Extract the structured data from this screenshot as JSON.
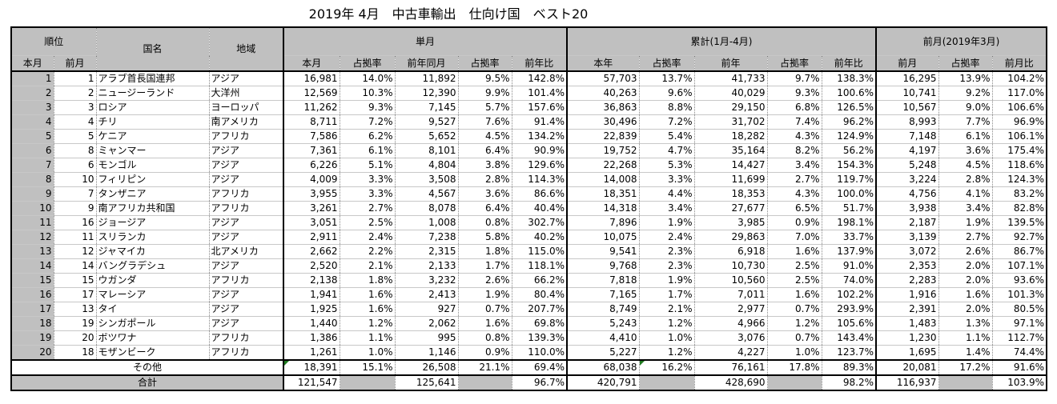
{
  "title": "2019年 4月　中古車輸出　仕向け国　ベスト20",
  "headers": {
    "rank": "順位",
    "rank_this": "本月",
    "rank_prev": "前月",
    "country": "国名",
    "region": "地域",
    "monthly": "単月",
    "cumulative": "累計(1月-4月)",
    "prevmonth": "前月(2019年3月)",
    "m_this": "本月",
    "m_share": "占拠率",
    "m_ly": "前年同月",
    "m_ly_share": "占拠率",
    "m_yoy": "前年比",
    "c_this": "本年",
    "c_share": "占拠率",
    "c_ly": "前年",
    "c_ly_share": "占拠率",
    "c_yoy": "前年比",
    "p_prev": "前月",
    "p_share": "占拠率",
    "p_mom": "前月比"
  },
  "rows": [
    {
      "rank": "1",
      "prev": "1",
      "country": "アラブ首長国連邦",
      "region": "アジア",
      "m": "16,981",
      "ms": "14.0%",
      "ly": "11,892",
      "lys": "9.5%",
      "yoy": "142.8%",
      "c": "57,703",
      "cs": "13.7%",
      "cly": "41,733",
      "clys": "9.7%",
      "cyoy": "138.3%",
      "p": "16,295",
      "ps": "13.9%",
      "mom": "104.2%"
    },
    {
      "rank": "2",
      "prev": "2",
      "country": "ニュージーランド",
      "region": "大洋州",
      "m": "12,569",
      "ms": "10.3%",
      "ly": "12,390",
      "lys": "9.9%",
      "yoy": "101.4%",
      "c": "40,263",
      "cs": "9.6%",
      "cly": "40,029",
      "clys": "9.3%",
      "cyoy": "100.6%",
      "p": "10,741",
      "ps": "9.2%",
      "mom": "117.0%"
    },
    {
      "rank": "3",
      "prev": "3",
      "country": "ロシア",
      "region": "ヨーロッパ",
      "m": "11,262",
      "ms": "9.3%",
      "ly": "7,145",
      "lys": "5.7%",
      "yoy": "157.6%",
      "c": "36,863",
      "cs": "8.8%",
      "cly": "29,150",
      "clys": "6.8%",
      "cyoy": "126.5%",
      "p": "10,567",
      "ps": "9.0%",
      "mom": "106.6%"
    },
    {
      "rank": "4",
      "prev": "4",
      "country": "チリ",
      "region": "南アメリカ",
      "m": "8,711",
      "ms": "7.2%",
      "ly": "9,527",
      "lys": "7.6%",
      "yoy": "91.4%",
      "c": "30,496",
      "cs": "7.2%",
      "cly": "31,702",
      "clys": "7.4%",
      "cyoy": "96.2%",
      "p": "8,993",
      "ps": "7.7%",
      "mom": "96.9%"
    },
    {
      "rank": "5",
      "prev": "5",
      "country": "ケニア",
      "region": "アフリカ",
      "m": "7,586",
      "ms": "6.2%",
      "ly": "5,652",
      "lys": "4.5%",
      "yoy": "134.2%",
      "c": "22,839",
      "cs": "5.4%",
      "cly": "18,282",
      "clys": "4.3%",
      "cyoy": "124.9%",
      "p": "7,148",
      "ps": "6.1%",
      "mom": "106.1%"
    },
    {
      "rank": "6",
      "prev": "8",
      "country": "ミャンマー",
      "region": "アジア",
      "m": "7,361",
      "ms": "6.1%",
      "ly": "8,101",
      "lys": "6.4%",
      "yoy": "90.9%",
      "c": "19,752",
      "cs": "4.7%",
      "cly": "35,164",
      "clys": "8.2%",
      "cyoy": "56.2%",
      "p": "4,197",
      "ps": "3.6%",
      "mom": "175.4%"
    },
    {
      "rank": "7",
      "prev": "6",
      "country": "モンゴル",
      "region": "アジア",
      "m": "6,226",
      "ms": "5.1%",
      "ly": "4,804",
      "lys": "3.8%",
      "yoy": "129.6%",
      "c": "22,268",
      "cs": "5.3%",
      "cly": "14,427",
      "clys": "3.4%",
      "cyoy": "154.3%",
      "p": "5,248",
      "ps": "4.5%",
      "mom": "118.6%"
    },
    {
      "rank": "8",
      "prev": "10",
      "country": "フィリピン",
      "region": "アジア",
      "m": "4,009",
      "ms": "3.3%",
      "ly": "3,508",
      "lys": "2.8%",
      "yoy": "114.3%",
      "c": "14,008",
      "cs": "3.3%",
      "cly": "11,699",
      "clys": "2.7%",
      "cyoy": "119.7%",
      "p": "3,224",
      "ps": "2.8%",
      "mom": "124.3%"
    },
    {
      "rank": "9",
      "prev": "7",
      "country": "タンザニア",
      "region": "アフリカ",
      "m": "3,955",
      "ms": "3.3%",
      "ly": "4,567",
      "lys": "3.6%",
      "yoy": "86.6%",
      "c": "18,351",
      "cs": "4.4%",
      "cly": "18,353",
      "clys": "4.3%",
      "cyoy": "100.0%",
      "p": "4,756",
      "ps": "4.1%",
      "mom": "83.2%"
    },
    {
      "rank": "10",
      "prev": "9",
      "country": "南アフリカ共和国",
      "region": "アフリカ",
      "m": "3,261",
      "ms": "2.7%",
      "ly": "8,078",
      "lys": "6.4%",
      "yoy": "40.4%",
      "c": "14,318",
      "cs": "3.4%",
      "cly": "27,677",
      "clys": "6.5%",
      "cyoy": "51.7%",
      "p": "3,938",
      "ps": "3.4%",
      "mom": "82.8%"
    },
    {
      "rank": "11",
      "prev": "16",
      "country": "ジョージア",
      "region": "アジア",
      "m": "3,051",
      "ms": "2.5%",
      "ly": "1,008",
      "lys": "0.8%",
      "yoy": "302.7%",
      "c": "7,896",
      "cs": "1.9%",
      "cly": "3,985",
      "clys": "0.9%",
      "cyoy": "198.1%",
      "p": "2,187",
      "ps": "1.9%",
      "mom": "139.5%"
    },
    {
      "rank": "12",
      "prev": "11",
      "country": "スリランカ",
      "region": "アジア",
      "m": "2,911",
      "ms": "2.4%",
      "ly": "7,238",
      "lys": "5.8%",
      "yoy": "40.2%",
      "c": "10,075",
      "cs": "2.4%",
      "cly": "29,863",
      "clys": "7.0%",
      "cyoy": "33.7%",
      "p": "3,139",
      "ps": "2.7%",
      "mom": "92.7%"
    },
    {
      "rank": "13",
      "prev": "12",
      "country": "ジャマイカ",
      "region": "北アメリカ",
      "m": "2,662",
      "ms": "2.2%",
      "ly": "2,315",
      "lys": "1.8%",
      "yoy": "115.0%",
      "c": "9,541",
      "cs": "2.3%",
      "cly": "6,918",
      "clys": "1.6%",
      "cyoy": "137.9%",
      "p": "3,072",
      "ps": "2.6%",
      "mom": "86.7%"
    },
    {
      "rank": "14",
      "prev": "14",
      "country": "バングラデシュ",
      "region": "アジア",
      "m": "2,520",
      "ms": "2.1%",
      "ly": "2,133",
      "lys": "1.7%",
      "yoy": "118.1%",
      "c": "9,768",
      "cs": "2.3%",
      "cly": "10,730",
      "clys": "2.5%",
      "cyoy": "91.0%",
      "p": "2,353",
      "ps": "2.0%",
      "mom": "107.1%"
    },
    {
      "rank": "15",
      "prev": "15",
      "country": "ウガンダ",
      "region": "アフリカ",
      "m": "2,138",
      "ms": "1.8%",
      "ly": "3,232",
      "lys": "2.6%",
      "yoy": "66.2%",
      "c": "7,818",
      "cs": "1.9%",
      "cly": "10,560",
      "clys": "2.5%",
      "cyoy": "74.0%",
      "p": "2,283",
      "ps": "2.0%",
      "mom": "93.6%"
    },
    {
      "rank": "16",
      "prev": "17",
      "country": "マレーシア",
      "region": "アジア",
      "m": "1,941",
      "ms": "1.6%",
      "ly": "2,413",
      "lys": "1.9%",
      "yoy": "80.4%",
      "c": "7,165",
      "cs": "1.7%",
      "cly": "7,011",
      "clys": "1.6%",
      "cyoy": "102.2%",
      "p": "1,916",
      "ps": "1.6%",
      "mom": "101.3%"
    },
    {
      "rank": "17",
      "prev": "13",
      "country": "タイ",
      "region": "アジア",
      "m": "1,925",
      "ms": "1.6%",
      "ly": "927",
      "lys": "0.7%",
      "yoy": "207.7%",
      "c": "8,749",
      "cs": "2.1%",
      "cly": "2,977",
      "clys": "0.7%",
      "cyoy": "293.9%",
      "p": "2,391",
      "ps": "2.0%",
      "mom": "80.5%"
    },
    {
      "rank": "18",
      "prev": "19",
      "country": "シンガポール",
      "region": "アジア",
      "m": "1,440",
      "ms": "1.2%",
      "ly": "2,062",
      "lys": "1.6%",
      "yoy": "69.8%",
      "c": "5,243",
      "cs": "1.2%",
      "cly": "4,966",
      "clys": "1.2%",
      "cyoy": "105.6%",
      "p": "1,483",
      "ps": "1.3%",
      "mom": "97.1%"
    },
    {
      "rank": "19",
      "prev": "20",
      "country": "ボツワナ",
      "region": "アフリカ",
      "m": "1,386",
      "ms": "1.1%",
      "ly": "995",
      "lys": "0.8%",
      "yoy": "139.3%",
      "c": "4,410",
      "cs": "1.0%",
      "cly": "3,076",
      "clys": "0.7%",
      "cyoy": "143.4%",
      "p": "1,230",
      "ps": "1.1%",
      "mom": "112.7%"
    },
    {
      "rank": "20",
      "prev": "18",
      "country": "モザンビーク",
      "region": "アフリカ",
      "m": "1,261",
      "ms": "1.0%",
      "ly": "1,146",
      "lys": "0.9%",
      "yoy": "110.0%",
      "c": "5,227",
      "cs": "1.2%",
      "cly": "4,227",
      "clys": "1.0%",
      "cyoy": "123.7%",
      "p": "1,695",
      "ps": "1.4%",
      "mom": "74.4%"
    }
  ],
  "other": {
    "label": "その他",
    "m": "18,391",
    "ms": "15.1%",
    "ly": "26,508",
    "lys": "21.1%",
    "yoy": "69.4%",
    "c": "68,038",
    "cs": "16.2%",
    "cly": "76,161",
    "clys": "17.8%",
    "cyoy": "89.3%",
    "p": "20,081",
    "ps": "17.2%",
    "mom": "91.6%"
  },
  "total": {
    "label": "合計",
    "m": "121,547",
    "ly": "125,641",
    "yoy": "96.7%",
    "c": "420,791",
    "cly": "428,690",
    "cyoy": "98.2%",
    "p": "116,937",
    "mom": "103.9%"
  },
  "colors": {
    "header_bg": "#c0c0c0",
    "note_marker": "#1f7a1f"
  }
}
